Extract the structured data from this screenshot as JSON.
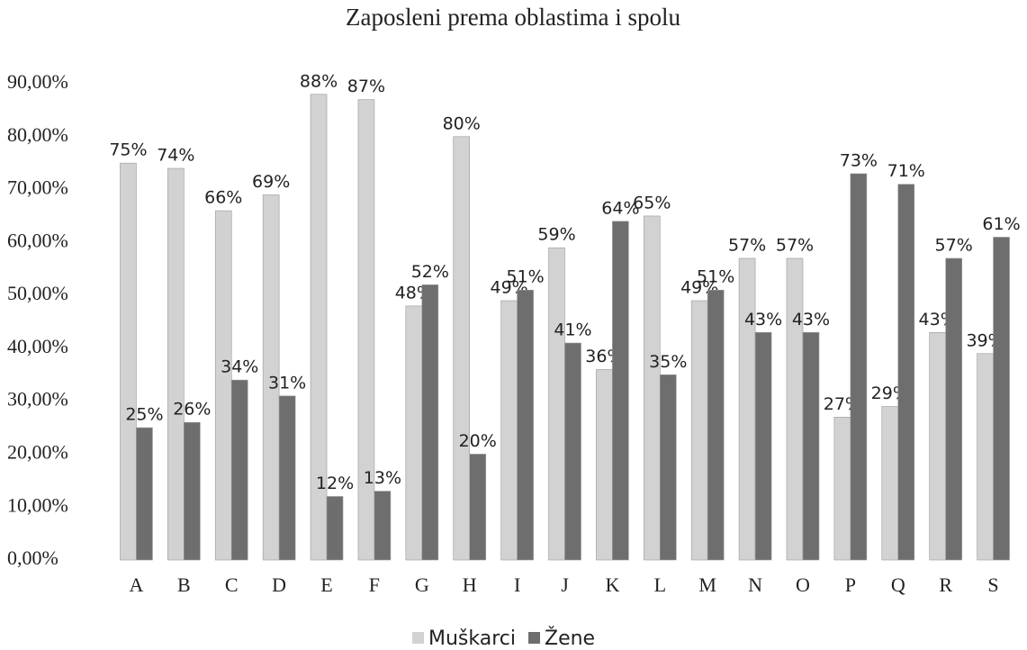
{
  "chart_data": {
    "type": "bar",
    "title": "Zaposleni prema oblastima i spolu",
    "categories": [
      "A",
      "B",
      "C",
      "D",
      "E",
      "F",
      "G",
      "H",
      "I",
      "J",
      "K",
      "L",
      "M",
      "N",
      "O",
      "P",
      "Q",
      "R",
      "S"
    ],
    "series": [
      {
        "name": "Muškarci",
        "color": "#d2d2d2",
        "values": [
          75,
          74,
          66,
          69,
          88,
          87,
          48,
          80,
          49,
          59,
          36,
          65,
          49,
          57,
          57,
          27,
          29,
          43,
          39
        ],
        "value_labels": [
          "75%",
          "74%",
          "66%",
          "69%",
          "88%",
          "87%",
          "48%",
          "80%",
          "49%",
          "59%",
          "36%",
          "65%",
          "49%",
          "57%",
          "57%",
          "27%",
          "29%",
          "43%",
          "39%"
        ]
      },
      {
        "name": "Žene",
        "color": "#6e6e6e",
        "values": [
          25,
          26,
          34,
          31,
          12,
          13,
          52,
          20,
          51,
          41,
          64,
          35,
          51,
          43,
          43,
          73,
          71,
          57,
          61
        ],
        "value_labels": [
          "25%",
          "26%",
          "34%",
          "31%",
          "12%",
          "13%",
          "52%",
          "20%",
          "51%",
          "41%",
          "64%",
          "35%",
          "51%",
          "43%",
          "43%",
          "73%",
          "71%",
          "57%",
          "61%"
        ]
      }
    ],
    "ylim": [
      0,
      90
    ],
    "yticks": [
      {
        "value": 0,
        "label": "0,00%"
      },
      {
        "value": 10,
        "label": "10,00%"
      },
      {
        "value": 20,
        "label": "20,00%"
      },
      {
        "value": 30,
        "label": "30,00%"
      },
      {
        "value": 40,
        "label": "40,00%"
      },
      {
        "value": 50,
        "label": "50,00%"
      },
      {
        "value": 60,
        "label": "60,00%"
      },
      {
        "value": 70,
        "label": "70,00%"
      },
      {
        "value": 80,
        "label": "80,00%"
      },
      {
        "value": 90,
        "label": "90,00%"
      }
    ],
    "legend": "bottom"
  }
}
